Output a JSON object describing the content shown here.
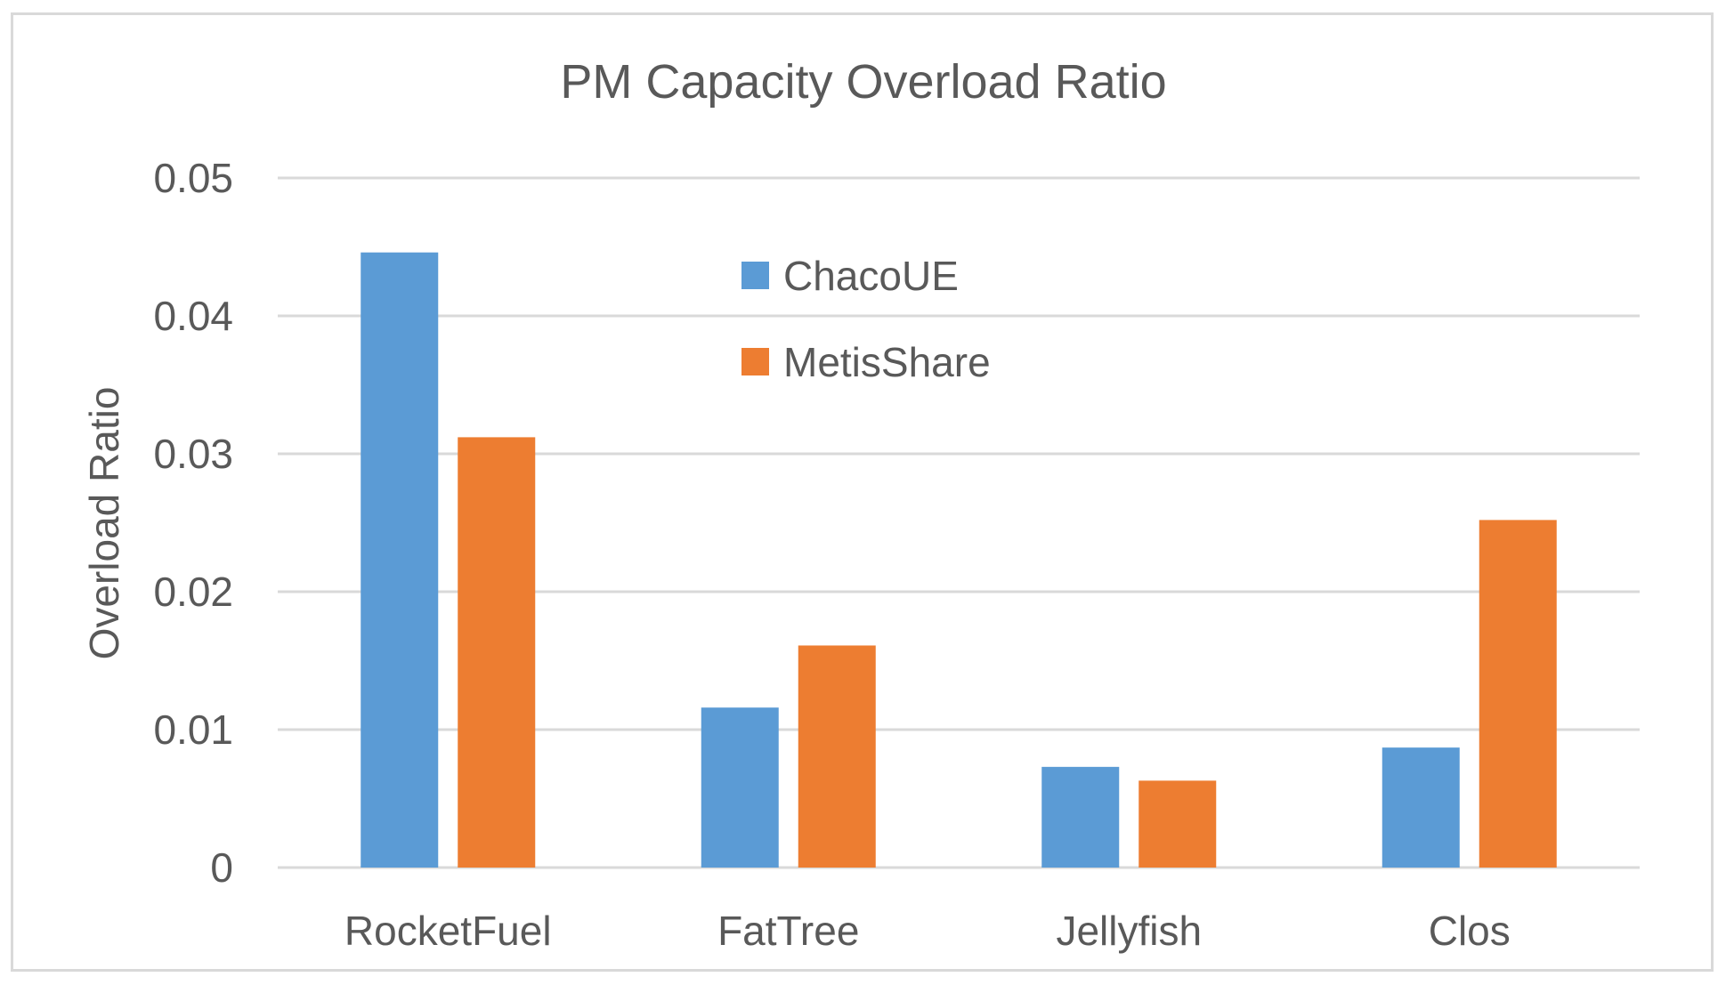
{
  "chart_data": {
    "type": "bar",
    "title": "PM Capacity Overload Ratio",
    "xlabel": "",
    "ylabel": "Overload Ratio",
    "categories": [
      "RocketFuel",
      "FatTree",
      "Jellyfish",
      "Clos"
    ],
    "series": [
      {
        "name": "ChacoUE",
        "color": "#5b9bd5",
        "values": [
          0.0446,
          0.0116,
          0.0073,
          0.0087
        ]
      },
      {
        "name": "MetisShare",
        "color": "#ed7d31",
        "values": [
          0.0312,
          0.0161,
          0.0063,
          0.0252
        ]
      }
    ],
    "ylim": [
      0,
      0.05
    ],
    "yticks": [
      "0",
      "0.01",
      "0.02",
      "0.03",
      "0.04",
      "0.05"
    ],
    "ytick_values": [
      0,
      0.01,
      0.02,
      0.03,
      0.04,
      0.05
    ],
    "grid": true,
    "legend_position": "top-center"
  }
}
